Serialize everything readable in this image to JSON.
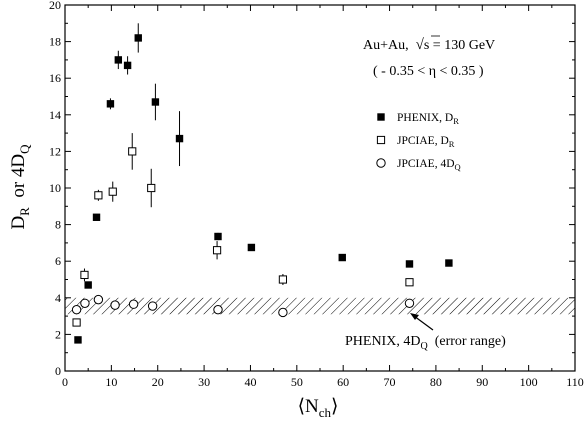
{
  "chart_data": {
    "type": "scatter",
    "xlabel": "⟨N",
    "xlabel_sub": "ch",
    "xlabel_close": "⟩",
    "ylabel_main": "D",
    "ylabel_sub": "R",
    "ylabel_mid": "  or 4D",
    "ylabel_sub2": "Q",
    "xlim": [
      0,
      110
    ],
    "ylim": [
      0,
      20
    ],
    "x_ticks": [
      "0",
      "10",
      "20",
      "30",
      "40",
      "50",
      "60",
      "70",
      "80",
      "90",
      "100",
      "110"
    ],
    "x_tick_values": [
      0,
      10,
      20,
      30,
      40,
      50,
      60,
      70,
      80,
      90,
      100,
      110
    ],
    "y_ticks": [
      "0",
      "2",
      "4",
      "6",
      "8",
      "10",
      "12",
      "14",
      "16",
      "18",
      "20"
    ],
    "y_tick_values": [
      0,
      2,
      4,
      6,
      8,
      10,
      12,
      14,
      16,
      18,
      20
    ],
    "annotations": {
      "system_a": "Au+Au,  ",
      "system_b": "s = 130 GeV",
      "eta_range": "( - 0.35 < η < 0.35 )",
      "band_label_a": "PHENIX, 4D",
      "band_label_sub": "Q",
      "band_label_b": "  (error range)"
    },
    "legend": [
      {
        "marker": "filled-square",
        "name": "PHENIX, D",
        "sub": "R"
      },
      {
        "marker": "open-square",
        "name": "JPCIAE, D",
        "sub": "R"
      },
      {
        "marker": "open-circle",
        "name": "JPCIAE, 4D",
        "sub": "Q"
      }
    ],
    "band": {
      "y_low": 3.1,
      "y_high": 4.0
    },
    "series": [
      {
        "name": "PHENIX, D_R",
        "marker": "filled-square",
        "points": [
          {
            "x": 2.8,
            "y": 1.7,
            "err": 0.0
          },
          {
            "x": 5.0,
            "y": 4.7,
            "err": 0.0
          },
          {
            "x": 6.8,
            "y": 8.4,
            "err": 0.0
          },
          {
            "x": 9.8,
            "y": 14.6,
            "err": 0.3
          },
          {
            "x": 11.5,
            "y": 17.0,
            "err": 0.5
          },
          {
            "x": 13.5,
            "y": 16.7,
            "err": 0.5
          },
          {
            "x": 15.8,
            "y": 18.2,
            "err": 0.8
          },
          {
            "x": 19.5,
            "y": 14.7,
            "err": 1.0
          },
          {
            "x": 24.7,
            "y": 12.7,
            "err": 1.5
          },
          {
            "x": 33.0,
            "y": 7.35,
            "err": 0.2
          },
          {
            "x": 40.2,
            "y": 6.75,
            "err": 0.0
          },
          {
            "x": 59.8,
            "y": 6.2,
            "err": 0.0
          },
          {
            "x": 74.3,
            "y": 5.85,
            "err": 0.15
          },
          {
            "x": 82.8,
            "y": 5.9,
            "err": 0.0
          }
        ]
      },
      {
        "name": "JPCIAE, D_R",
        "marker": "open-square",
        "points": [
          {
            "x": 2.5,
            "y": 2.65,
            "err": 0.1
          },
          {
            "x": 4.2,
            "y": 5.25,
            "err": 0.35
          },
          {
            "x": 7.2,
            "y": 9.6,
            "err": 0.3
          },
          {
            "x": 10.3,
            "y": 9.8,
            "err": 0.55
          },
          {
            "x": 14.5,
            "y": 12.0,
            "err": 1.0
          },
          {
            "x": 18.6,
            "y": 10.0,
            "err": 1.05
          },
          {
            "x": 32.8,
            "y": 6.6,
            "err": 0.5
          },
          {
            "x": 47.0,
            "y": 5.0,
            "err": 0.3
          },
          {
            "x": 74.3,
            "y": 4.85,
            "err": 0.15
          }
        ]
      },
      {
        "name": "JPCIAE, 4D_Q",
        "marker": "open-circle",
        "points": [
          {
            "x": 2.5,
            "y": 3.35,
            "err": 0.1
          },
          {
            "x": 4.3,
            "y": 3.7,
            "err": 0.1
          },
          {
            "x": 7.2,
            "y": 3.9,
            "err": 0.1
          },
          {
            "x": 10.8,
            "y": 3.6,
            "err": 0.1
          },
          {
            "x": 14.8,
            "y": 3.65,
            "err": 0.1
          },
          {
            "x": 18.9,
            "y": 3.55,
            "err": 0.1
          },
          {
            "x": 33.0,
            "y": 3.35,
            "err": 0.1
          },
          {
            "x": 47.0,
            "y": 3.2,
            "err": 0.1
          },
          {
            "x": 74.3,
            "y": 3.7,
            "err": 0.1
          }
        ]
      }
    ]
  }
}
